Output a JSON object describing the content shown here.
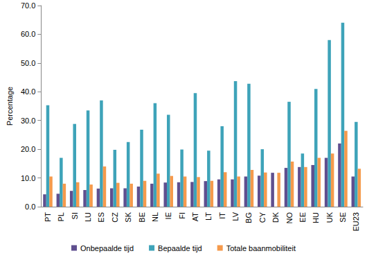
{
  "chart_data": {
    "type": "bar",
    "y_label": "Percentage",
    "categories": [
      "PT",
      "PL",
      "SI",
      "LU",
      "ES",
      "CZ",
      "SK",
      "BE",
      "NL",
      "IE",
      "FI",
      "AT",
      "LT",
      "IT",
      "LV",
      "BG",
      "CY",
      "DK",
      "NO",
      "EE",
      "HU",
      "UK",
      "SE",
      "EU23"
    ],
    "series": [
      {
        "name": "Onbepaalde tijd",
        "color": "#5f4f8f",
        "values": [
          4.3,
          4.5,
          5.5,
          5.8,
          6.3,
          6.4,
          6.4,
          7.0,
          8.0,
          8.4,
          8.5,
          8.6,
          8.9,
          9.5,
          9.5,
          10.5,
          10.8,
          11.8,
          13.5,
          13.8,
          14.5,
          17.0,
          22.0,
          10.5
        ]
      },
      {
        "name": "Bepaalde tijd",
        "color": "#3ea3b9",
        "values": [
          35.3,
          17.0,
          28.8,
          33.5,
          37.0,
          19.8,
          22.5,
          26.8,
          36.0,
          32.0,
          19.9,
          39.5,
          19.5,
          28.0,
          43.7,
          42.8,
          20.0,
          null,
          36.5,
          18.5,
          41.0,
          58.0,
          64.0,
          29.5
        ]
      },
      {
        "name": "Totale baanmobiliteit",
        "color": "#f59a4c",
        "values": [
          10.5,
          8.0,
          8.5,
          7.7,
          14.0,
          8.3,
          8.0,
          9.0,
          11.5,
          10.7,
          10.5,
          10.3,
          9.0,
          12.0,
          10.5,
          12.8,
          11.9,
          11.8,
          15.7,
          13.8,
          17.0,
          18.5,
          26.4,
          13.2
        ]
      }
    ],
    "ylim": [
      0,
      70
    ],
    "yticks": [
      {
        "value": 0,
        "label": "0.0"
      },
      {
        "value": 10,
        "label": "10.0"
      },
      {
        "value": 20,
        "label": "20.0"
      },
      {
        "value": 30,
        "label": "30.0"
      },
      {
        "value": 40,
        "label": "40.0"
      },
      {
        "value": 50,
        "label": "50.0"
      },
      {
        "value": 60,
        "label": "60.0"
      },
      {
        "value": 70,
        "label": "70.0"
      }
    ],
    "grid": false,
    "legend": "bottom"
  }
}
